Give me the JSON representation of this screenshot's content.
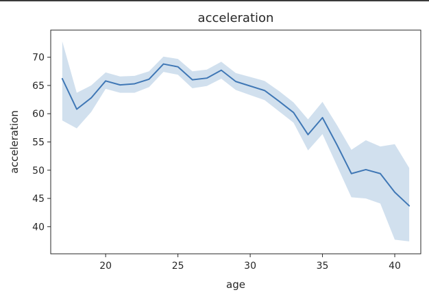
{
  "chart_data": {
    "type": "line",
    "title": "acceleration",
    "xlabel": "age",
    "ylabel": "acceleration",
    "xlim": [
      16.2,
      41.8
    ],
    "ylim": [
      35.2,
      74.8
    ],
    "xticks": [
      20,
      25,
      30,
      35,
      40
    ],
    "yticks": [
      40,
      45,
      50,
      55,
      60,
      65,
      70
    ],
    "grid": false,
    "legend": "none",
    "colors": {
      "line": "#3f77b5",
      "band": "#c6d8ea",
      "axis": "#262626"
    },
    "series": [
      {
        "x": [
          17,
          18,
          19,
          20,
          21,
          22,
          23,
          24,
          25,
          26,
          27,
          28,
          29,
          30,
          31,
          32,
          33,
          34,
          35,
          36,
          37,
          38,
          39,
          40,
          41
        ],
        "values": [
          66.2,
          60.8,
          62.8,
          65.8,
          65.1,
          65.3,
          66.1,
          68.8,
          68.3,
          66.0,
          66.3,
          67.7,
          65.7,
          64.9,
          64.1,
          62.2,
          60.2,
          56.3,
          59.3,
          54.5,
          49.4,
          50.1,
          49.4,
          46.1,
          43.7
        ],
        "lower": [
          58.8,
          57.4,
          60.3,
          64.4,
          63.7,
          63.7,
          64.7,
          67.4,
          66.9,
          64.5,
          64.9,
          66.2,
          64.2,
          63.3,
          62.4,
          60.4,
          58.4,
          53.5,
          56.4,
          50.8,
          45.2,
          45.0,
          44.1,
          37.7,
          37.4
        ],
        "upper": [
          72.8,
          63.7,
          65.0,
          67.3,
          66.6,
          66.7,
          67.5,
          70.1,
          69.7,
          67.5,
          67.8,
          69.2,
          67.2,
          66.5,
          65.8,
          64.0,
          62.0,
          59.0,
          62.1,
          58.0,
          53.6,
          55.3,
          54.2,
          54.6,
          50.4
        ]
      }
    ]
  }
}
